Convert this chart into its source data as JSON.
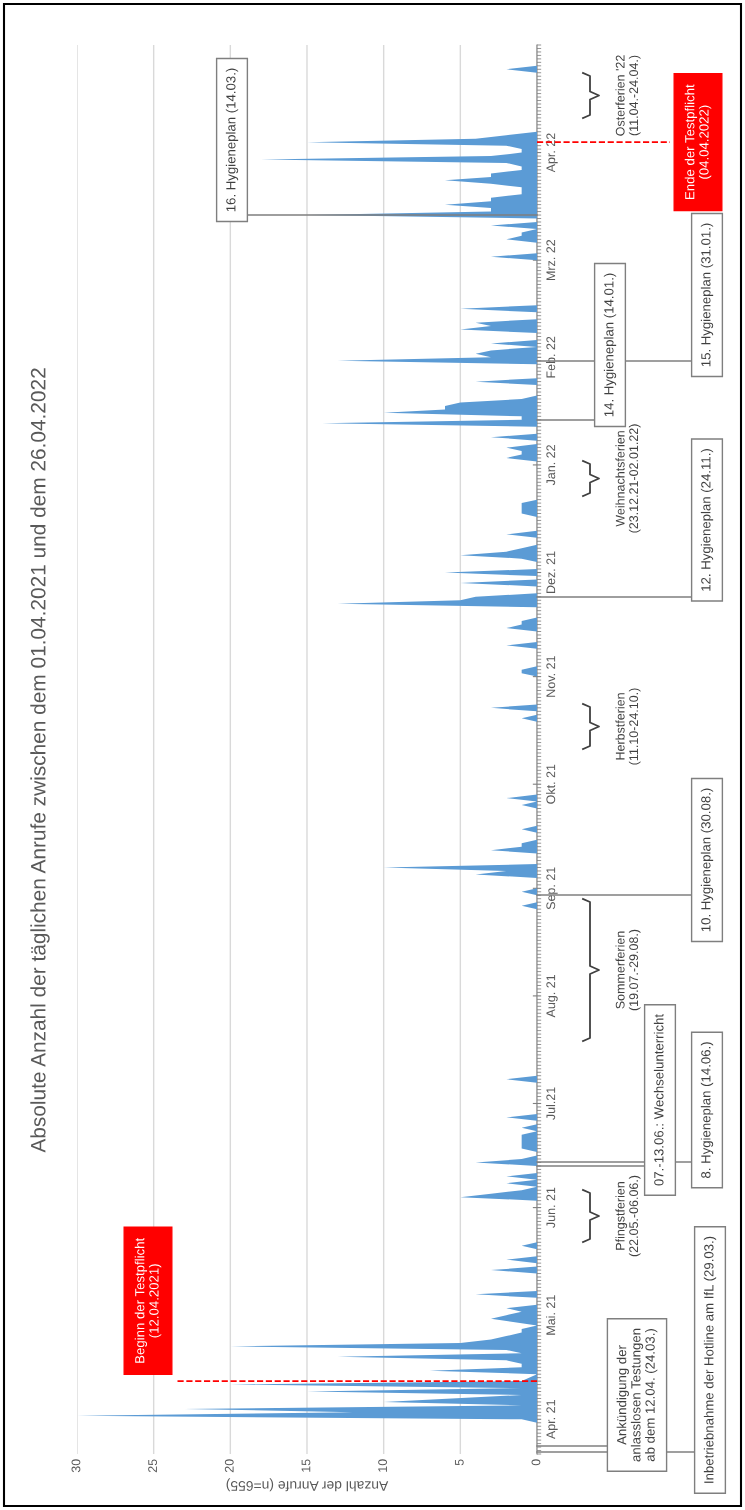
{
  "chart_data": {
    "type": "area",
    "orientation": "horizontal",
    "title": "Absolute Anzahl der täglichen Anrufe zwischen dem 01.04.2021 und dem 26.04.2022",
    "xlabel": "Anzahl der Anrufe (n=655)",
    "xlim": [
      30,
      0
    ],
    "xticks": [
      0,
      5,
      10,
      15,
      20,
      25,
      30
    ],
    "ylim": [
      "2021-03-22",
      "2022-05-02"
    ],
    "yticks": [
      {
        "value": "2021-04-01",
        "label": "Apr. 21"
      },
      {
        "value": "2021-05-01",
        "label": "Mai. 21"
      },
      {
        "value": "2021-06-01",
        "label": "Jun. 21"
      },
      {
        "value": "2021-07-01",
        "label": "Jul.21"
      },
      {
        "value": "2021-08-01",
        "label": "Aug. 21"
      },
      {
        "value": "2021-09-01",
        "label": "Sep. 21"
      },
      {
        "value": "2021-10-01",
        "label": "Okt. 21"
      },
      {
        "value": "2021-11-01",
        "label": "Nov. 21"
      },
      {
        "value": "2021-12-01",
        "label": "Dez. 21"
      },
      {
        "value": "2022-01-01",
        "label": "Jan. 22"
      },
      {
        "value": "2022-02-01",
        "label": "Feb. 22"
      },
      {
        "value": "2022-03-01",
        "label": "Mrz. 22"
      },
      {
        "value": "2022-04-01",
        "label": "Apr. 22"
      }
    ],
    "grid": "x",
    "x": [
      "2021-03-31",
      "2021-04-01",
      "2021-04-02",
      "2021-04-03",
      "2021-04-04",
      "2021-04-05",
      "2021-04-06",
      "2021-04-08",
      "2021-04-09",
      "2021-04-10",
      "2021-04-11",
      "2021-04-12",
      "2021-04-14",
      "2021-04-15",
      "2021-04-16",
      "2021-04-17",
      "2021-04-18",
      "2021-04-19",
      "2021-04-20",
      "2021-04-21",
      "2021-04-22",
      "2021-04-23",
      "2021-04-24",
      "2021-04-25",
      "2021-04-26",
      "2021-04-27",
      "2021-04-28",
      "2021-04-30",
      "2021-05-01",
      "2021-05-02",
      "2021-05-03",
      "2021-05-04",
      "2021-05-06",
      "2021-05-07",
      "2021-05-08",
      "2021-05-13",
      "2021-05-14",
      "2021-05-15",
      "2021-05-16",
      "2021-05-17",
      "2021-05-18",
      "2021-05-20",
      "2021-05-21",
      "2021-05-22",
      "2021-06-03",
      "2021-06-04",
      "2021-06-05",
      "2021-06-06",
      "2021-06-07",
      "2021-06-08",
      "2021-06-09",
      "2021-06-10",
      "2021-06-11",
      "2021-06-13",
      "2021-06-14",
      "2021-06-15",
      "2021-06-16",
      "2021-06-17",
      "2021-06-18",
      "2021-06-22",
      "2021-06-23",
      "2021-06-24",
      "2021-06-25",
      "2021-06-26",
      "2021-06-27",
      "2021-06-28",
      "2021-07-07",
      "2021-07-08",
      "2021-07-09",
      "2021-08-26",
      "2021-08-27",
      "2021-08-28",
      "2021-08-30",
      "2021-08-31",
      "2021-09-01",
      "2021-09-04",
      "2021-09-05",
      "2021-09-06",
      "2021-09-07",
      "2021-09-08",
      "2021-09-11",
      "2021-09-12",
      "2021-09-13",
      "2021-09-14",
      "2021-09-15",
      "2021-09-17",
      "2021-09-18",
      "2021-09-19",
      "2021-09-24",
      "2021-09-25",
      "2021-09-26",
      "2021-09-27",
      "2021-09-28",
      "2021-10-19",
      "2021-10-20",
      "2021-10-21",
      "2021-10-22",
      "2021-10-23",
      "2021-10-24",
      "2021-11-01",
      "2021-11-02",
      "2021-11-03",
      "2021-11-04",
      "2021-11-09",
      "2021-11-10",
      "2021-11-11",
      "2021-11-14",
      "2021-11-15",
      "2021-11-16",
      "2021-11-17",
      "2021-11-18",
      "2021-11-21",
      "2021-11-22",
      "2021-11-23",
      "2021-11-24",
      "2021-11-25",
      "2021-11-27",
      "2021-11-28",
      "2021-11-29",
      "2021-11-30",
      "2021-12-01",
      "2021-12-02",
      "2021-12-04",
      "2021-12-05",
      "2021-12-06",
      "2021-12-07",
      "2021-12-08",
      "2021-12-09",
      "2021-12-11",
      "2021-12-12",
      "2021-12-13",
      "2021-12-17",
      "2021-12-18",
      "2021-12-21",
      "2021-12-22",
      "2022-01-02",
      "2022-01-03",
      "2022-01-04",
      "2022-01-05",
      "2022-01-06",
      "2022-01-07",
      "2022-01-08",
      "2022-01-09",
      "2022-01-10",
      "2022-01-12",
      "2022-01-13",
      "2022-01-14",
      "2022-01-15",
      "2022-01-16",
      "2022-01-17",
      "2022-01-18",
      "2022-01-19",
      "2022-01-20",
      "2022-01-21",
      "2022-01-24",
      "2022-01-25",
      "2022-01-26",
      "2022-01-30",
      "2022-01-31",
      "2022-02-01",
      "2022-02-02",
      "2022-02-03",
      "2022-02-04",
      "2022-02-05",
      "2022-02-06",
      "2022-02-08",
      "2022-02-09",
      "2022-02-10",
      "2022-02-11",
      "2022-02-12",
      "2022-02-14",
      "2022-02-15",
      "2022-02-16",
      "2022-03-01",
      "2022-03-02",
      "2022-03-03",
      "2022-03-06",
      "2022-03-07",
      "2022-03-08",
      "2022-03-09",
      "2022-03-10",
      "2022-03-11",
      "2022-03-12",
      "2022-03-13",
      "2022-03-14",
      "2022-03-15",
      "2022-03-16",
      "2022-03-17",
      "2022-03-18",
      "2022-03-19",
      "2022-03-20",
      "2022-03-21",
      "2022-03-22",
      "2022-03-23",
      "2022-03-24",
      "2022-03-25",
      "2022-03-26",
      "2022-03-27",
      "2022-03-28",
      "2022-03-29",
      "2022-03-30",
      "2022-03-31",
      "2022-04-01",
      "2022-04-02",
      "2022-04-03",
      "2022-04-04",
      "2022-04-05",
      "2022-04-06",
      "2022-04-07",
      "2022-04-24",
      "2022-04-25",
      "2022-04-26"
    ],
    "series": [
      {
        "color": "#5b9bd5",
        "values": [
          0,
          1,
          30,
          12,
          23,
          1,
          10,
          1,
          15,
          1,
          20,
          1,
          0,
          7,
          1,
          1,
          2,
          13,
          1,
          2,
          20,
          5,
          3,
          2,
          1,
          1,
          0,
          3,
          2,
          1,
          2,
          0,
          0,
          4,
          0,
          0,
          3,
          0,
          0,
          2,
          0,
          0,
          1,
          0,
          0,
          5,
          3,
          1,
          0,
          2,
          0,
          2,
          0,
          0,
          4,
          1,
          0,
          0,
          1,
          1,
          0,
          1,
          0,
          0,
          2,
          0,
          0,
          2,
          0,
          0,
          1,
          0,
          0,
          1,
          0,
          0,
          4,
          2,
          10,
          0,
          0,
          3,
          1,
          1,
          0,
          0,
          1,
          0,
          0,
          1,
          0,
          2,
          0,
          0,
          1,
          0,
          0,
          3,
          0,
          0,
          1,
          1,
          0,
          0,
          2,
          0,
          0,
          2,
          1,
          1,
          0,
          0,
          13,
          5,
          4,
          0,
          0,
          5,
          0,
          0,
          6,
          0,
          0,
          1,
          5,
          2,
          1,
          0,
          0,
          2,
          0,
          0,
          1,
          1,
          0,
          0,
          2,
          1,
          1,
          2,
          0,
          0,
          3,
          0,
          0,
          14,
          1,
          1,
          10,
          6,
          6,
          5,
          1,
          0,
          0,
          4,
          0,
          0,
          13,
          3,
          4,
          3,
          0,
          3,
          0,
          0,
          5,
          3,
          4,
          0,
          0,
          5,
          0,
          0,
          3,
          0,
          0,
          2,
          1,
          1,
          0,
          3,
          0,
          0,
          15,
          3,
          3,
          6,
          3,
          3,
          1,
          1,
          1,
          3,
          6,
          3,
          3,
          1,
          1,
          2,
          18,
          3,
          1,
          1,
          2,
          15,
          4,
          2,
          0,
          0,
          2,
          0
        ]
      }
    ],
    "ref_lines": [
      {
        "axis": "y",
        "value": "2021-04-12",
        "label": "Beginn der Testpflicht\n(12.04.2021)",
        "color": "#ff0000",
        "line_style": "dashed"
      },
      {
        "axis": "y",
        "value": "2022-04-04",
        "label": "Ende der Testpflicht\n(04.04.2022)",
        "color": "#ff0000",
        "line_style": "dashed"
      }
    ],
    "annotations": [
      "Inbetriebnahme der Hotline am IfL (29.03.)",
      "Ankündigung der\nanlasslosen Testungen\nab dem 12.04. (24.03.)",
      "07.-13.06.: Wechselunterricht",
      "8. Hygieneplan (14.06.)",
      "10. Hygieneplan (30.08.)",
      "12. Hygieneplan (24.11.)",
      "14. Hygieneplan (14.01.)",
      "15. Hygieneplan (31.01.)",
      "16. Hygieneplan (14.03.)",
      "Pfingstferien\n(22.05.-06.06.)",
      "Sommerferien\n(19.07.-29.08.)",
      "Herbstferien\n(11.10-24.10.)",
      "Weihnachtsferien\n(23.12.21-02.01.22)",
      "Osterferien '22\n(11.04.-24.04.)"
    ]
  }
}
